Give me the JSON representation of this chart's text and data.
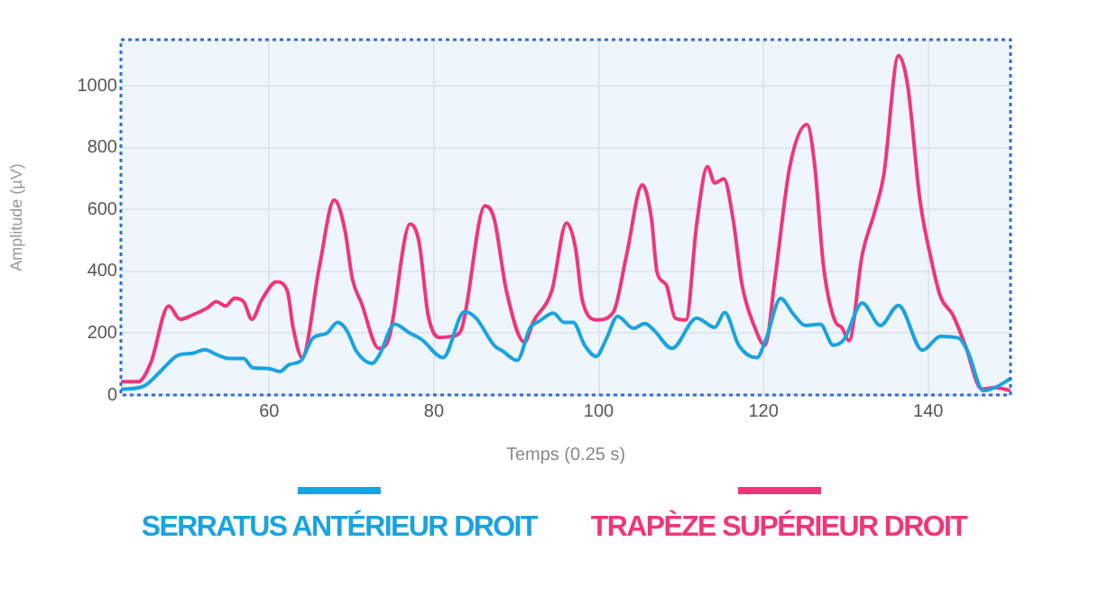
{
  "chart_data": {
    "type": "line",
    "xlabel": "Temps (0.25 s)",
    "ylabel": "Amplitude (µV)",
    "xlim": [
      42,
      150
    ],
    "xticks": [
      60,
      80,
      100,
      120,
      140
    ],
    "ylim": [
      0,
      1150
    ],
    "yticks": [
      0,
      200,
      400,
      600,
      800,
      1000
    ],
    "grid": true,
    "legend": "bottom",
    "marker": "none",
    "line_style": "solid",
    "series": [
      {
        "name": "SERRATUS ANTÉRIEUR DROIT",
        "color": "#1aa3e0",
        "x": [
          42,
          44.8,
          47,
          48.9,
          50.7,
          52.2,
          53.6,
          55.1,
          56.9,
          58,
          59.8,
          61.3,
          62.4,
          63.9,
          65.3,
          67,
          68.3,
          69.4,
          70.6,
          72.5,
          73.4,
          75.2,
          77.1,
          78.5,
          81.1,
          83.7,
          85.1,
          87.3,
          88.4,
          90.1,
          91.7,
          92.8,
          94.5,
          95.8,
          96.9,
          98.3,
          99.7,
          100.9,
          102.3,
          104.2,
          105.6,
          106.7,
          108.9,
          111.9,
          114.1,
          115.3,
          117,
          119.2,
          120.3,
          122.1,
          123.6,
          125.1,
          126.9,
          128.5,
          129.8,
          132,
          134.2,
          136.4,
          139.3,
          141.5,
          143.7,
          144.8,
          146.7,
          148.1,
          150
        ],
        "values": [
          18,
          29,
          82,
          128,
          135,
          147,
          131,
          118,
          118,
          88,
          86,
          76,
          98,
          112,
          184,
          200,
          235,
          210,
          141,
          102,
          131,
          229,
          200,
          180,
          121,
          269,
          249,
          161,
          141,
          112,
          219,
          239,
          265,
          235,
          235,
          161,
          125,
          180,
          255,
          216,
          231,
          210,
          151,
          249,
          219,
          267,
          161,
          121,
          180,
          312,
          263,
          225,
          229,
          161,
          180,
          298,
          225,
          290,
          145,
          190,
          184,
          141,
          14,
          24,
          53
        ]
      },
      {
        "name": "TRAPÈZE SUPÉRIEUR DROIT",
        "color": "#f0357a",
        "x": [
          42,
          44.1,
          45.6,
          47.8,
          49.2,
          50.7,
          52.5,
          53.6,
          54.7,
          55.8,
          56.9,
          57.9,
          59.1,
          60.9,
          62.2,
          62.9,
          64,
          66.1,
          67.9,
          69.2,
          70.1,
          71.2,
          73.3,
          74.5,
          77.1,
          78.2,
          79.3,
          80.7,
          82.2,
          83.3,
          86.2,
          87.3,
          88.8,
          91,
          92.1,
          94.3,
          96.1,
          97.2,
          98,
          99.8,
          101.8,
          103.4,
          105.3,
          106.4,
          107.1,
          108.2,
          109.3,
          110.6,
          111.9,
          113.2,
          114.1,
          115.2,
          116.3,
          117.4,
          118.8,
          120.2,
          121.4,
          123.2,
          125.3,
          126.2,
          127.3,
          128.7,
          129.5,
          130.4,
          132,
          133.5,
          134.6,
          136.4,
          137.5,
          139,
          140.4,
          141.5,
          143,
          144.5,
          146.5,
          148.1,
          150
        ],
        "values": [
          43,
          43,
          102,
          288,
          245,
          259,
          282,
          302,
          288,
          313,
          302,
          245,
          308,
          366,
          337,
          219,
          121,
          416,
          631,
          533,
          376,
          298,
          151,
          180,
          553,
          494,
          259,
          186,
          190,
          210,
          612,
          572,
          337,
          171,
          239,
          337,
          557,
          474,
          308,
          243,
          269,
          455,
          680,
          572,
          396,
          357,
          249,
          243,
          553,
          739,
          686,
          700,
          572,
          357,
          229,
          161,
          376,
          739,
          876,
          749,
          416,
          239,
          219,
          176,
          455,
          592,
          710,
          1098,
          1004,
          631,
          435,
          318,
          259,
          161,
          19,
          24,
          14
        ]
      }
    ]
  }
}
